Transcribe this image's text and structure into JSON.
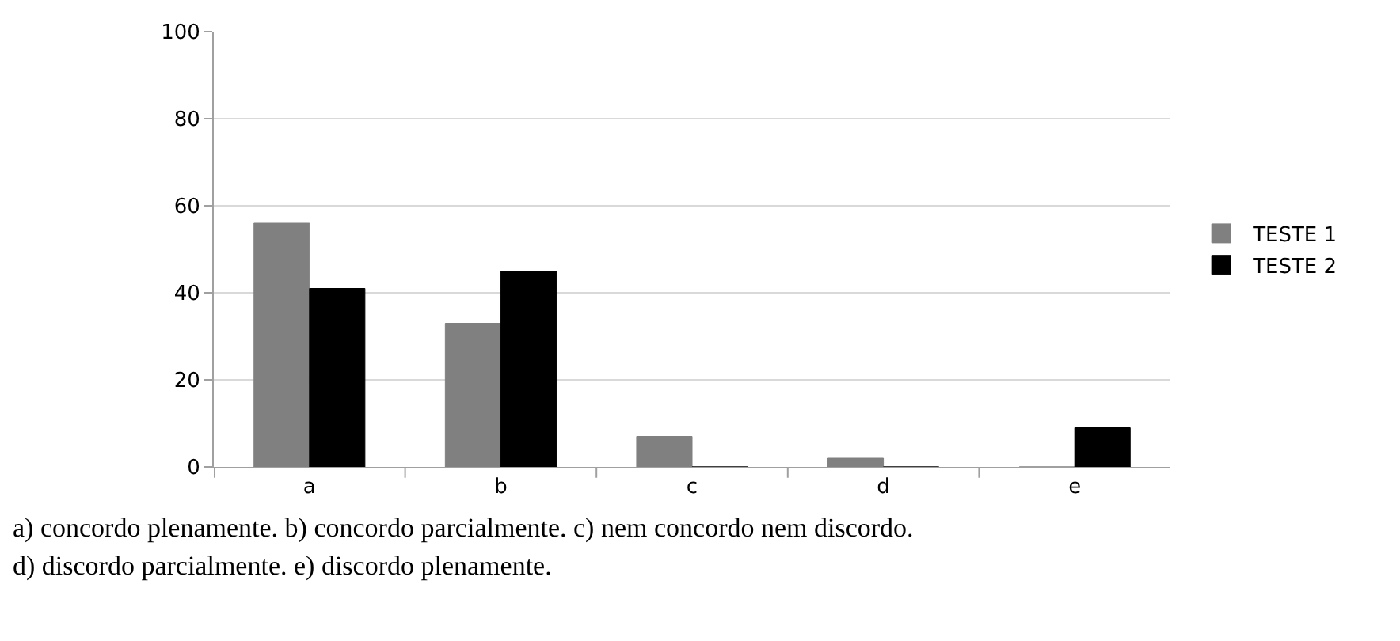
{
  "chart_data": {
    "type": "bar",
    "categories": [
      "a",
      "b",
      "c",
      "d",
      "e"
    ],
    "series": [
      {
        "name": "TESTE 1",
        "color": "#808080",
        "values": [
          56,
          33,
          7,
          2,
          0
        ]
      },
      {
        "name": "TESTE 2",
        "color": "#000000",
        "values": [
          41,
          45,
          0,
          0,
          9
        ]
      }
    ],
    "ylim": [
      0,
      100
    ],
    "yticks": [
      0,
      20,
      40,
      60,
      80,
      100
    ],
    "grid": "y",
    "legend": "right",
    "annotations": [
      "a) concordo plenamente. b) concordo parcialmente. c) nem concordo nem discordo.",
      "d) discordo parcialmente. e) discordo plenamente."
    ]
  }
}
